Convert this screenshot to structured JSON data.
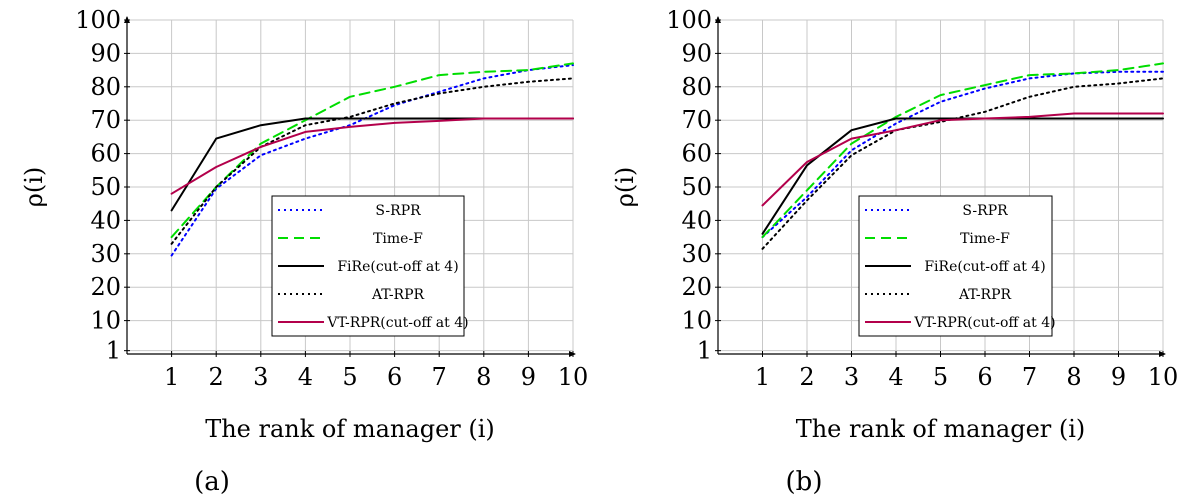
{
  "chart_data": [
    {
      "type": "line",
      "caption": "(a)",
      "xlabel": "The rank of manager (i)",
      "ylabel": "ρ(i)",
      "x": [
        1,
        2,
        3,
        4,
        5,
        6,
        7,
        8,
        9,
        10
      ],
      "xlim": [
        0,
        10
      ],
      "ylim": [
        0,
        100
      ],
      "yticks": [
        1,
        10,
        20,
        30,
        40,
        50,
        60,
        70,
        80,
        90,
        100
      ],
      "grid": true,
      "legend_position": "center-right",
      "series": [
        {
          "name": "S-RPR",
          "color": "#0000ff",
          "dash": "dotted",
          "values": [
            29.5,
            49.5,
            59.5,
            64.5,
            68.5,
            74.5,
            78.5,
            82.5,
            85,
            86.5
          ]
        },
        {
          "name": "Time-F",
          "color": "#00dd00",
          "dash": "dashed",
          "values": [
            35,
            50,
            63,
            70,
            77,
            80,
            83.5,
            84.5,
            85,
            87
          ]
        },
        {
          "name": "FiRe(cut-off at 4)",
          "color": "#000000",
          "dash": "solid",
          "values": [
            43,
            64.5,
            68.5,
            70.5,
            70.5,
            70.5,
            70.5,
            70.5,
            70.5,
            70.5
          ]
        },
        {
          "name": "AT-RPR",
          "color": "#000000",
          "dash": "dotted",
          "values": [
            33,
            50,
            62,
            68.5,
            71,
            75,
            78,
            80,
            81.5,
            82.5
          ]
        },
        {
          "name": "VT-RPR(cut-off at 4)",
          "color": "#b3004b",
          "dash": "solid",
          "values": [
            48,
            56,
            62,
            66.5,
            68,
            69.2,
            69.8,
            70.5,
            70.5,
            70.5
          ]
        }
      ]
    },
    {
      "type": "line",
      "caption": "(b)",
      "xlabel": "The rank of manager (i)",
      "ylabel": "ρ(i)",
      "x": [
        1,
        2,
        3,
        4,
        5,
        6,
        7,
        8,
        9,
        10
      ],
      "xlim": [
        0,
        10
      ],
      "ylim": [
        0,
        100
      ],
      "yticks": [
        1,
        10,
        20,
        30,
        40,
        50,
        60,
        70,
        80,
        90,
        100
      ],
      "grid": true,
      "legend_position": "center-right",
      "series": [
        {
          "name": "S-RPR",
          "color": "#0000ff",
          "dash": "dotted",
          "values": [
            35,
            47,
            61,
            69,
            75.5,
            79.5,
            82.5,
            84,
            84.5,
            84.5
          ]
        },
        {
          "name": "Time-F",
          "color": "#00dd00",
          "dash": "dashed",
          "values": [
            35,
            49,
            63,
            71,
            77.5,
            80.5,
            83.5,
            84,
            85,
            87
          ]
        },
        {
          "name": "FiRe(cut-off at 4)",
          "color": "#000000",
          "dash": "solid",
          "values": [
            36,
            56.5,
            67,
            70.5,
            70.5,
            70.5,
            70.5,
            70.5,
            70.5,
            70.5
          ]
        },
        {
          "name": "AT-RPR",
          "color": "#000000",
          "dash": "dotted",
          "values": [
            31.5,
            46,
            59.5,
            67,
            69.5,
            72.5,
            77,
            80,
            81,
            82.5
          ]
        },
        {
          "name": "VT-RPR(cut-off at 4)",
          "color": "#b3004b",
          "dash": "solid",
          "values": [
            44.5,
            57.5,
            64.5,
            67,
            70,
            70.5,
            71,
            72,
            72,
            72
          ]
        }
      ]
    }
  ]
}
